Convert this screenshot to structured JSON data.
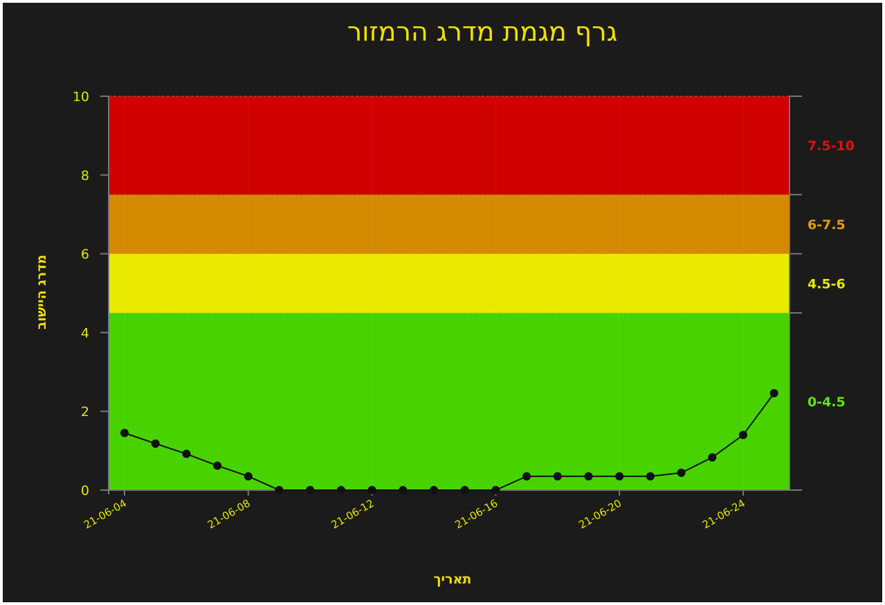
{
  "chart_data": {
    "type": "line",
    "title": "גרף מגמת מדרג הרמזור",
    "xlabel": "תאריך",
    "ylabel": "מדרג היישוב",
    "ylim": [
      0,
      10
    ],
    "y_ticks": [
      "0",
      "2",
      "4",
      "6",
      "8",
      "10"
    ],
    "x": [
      "21-06-04",
      "21-06-05",
      "21-06-06",
      "21-06-07",
      "21-06-08",
      "21-06-09",
      "21-06-10",
      "21-06-11",
      "21-06-12",
      "21-06-13",
      "21-06-14",
      "21-06-15",
      "21-06-16",
      "21-06-17",
      "21-06-18",
      "21-06-19",
      "21-06-20",
      "21-06-21",
      "21-06-22",
      "21-06-23",
      "21-06-24",
      "21-06-25"
    ],
    "x_tick_labels": [
      "21-06-04",
      "21-06-08",
      "21-06-12",
      "21-06-16",
      "21-06-20",
      "21-06-24"
    ],
    "series": [
      {
        "values": [
          1.45,
          1.18,
          0.92,
          0.62,
          0.35,
          0.0,
          0.0,
          0.0,
          0.0,
          0.0,
          0.0,
          0.0,
          0.0,
          0.35,
          0.35,
          0.35,
          0.35,
          0.35,
          0.44,
          0.83,
          1.4,
          2.46
        ],
        "color": "#111111"
      }
    ],
    "bands": [
      {
        "from": 0,
        "to": 4.5,
        "label": "0-4.5",
        "color": "#48d300",
        "label_color": "#5ee61a"
      },
      {
        "from": 4.5,
        "to": 6,
        "label": "4.5-6",
        "color": "#eaea00",
        "label_color": "#eaea00"
      },
      {
        "from": 6,
        "to": 7.5,
        "label": "6-7.5",
        "color": "#d38a00",
        "label_color": "#e59a18"
      },
      {
        "from": 7.5,
        "to": 10,
        "label": "7.5-10",
        "color": "#d10000",
        "label_color": "#e01010"
      }
    ],
    "grid": true,
    "colors": {
      "background": "#1b1b1b",
      "title": "#f0e000",
      "axis_text": "#e6e600",
      "axis_line": "#777777"
    }
  }
}
